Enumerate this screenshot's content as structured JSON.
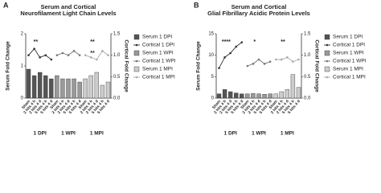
{
  "chart_data": [
    {
      "type": "bar-line",
      "panel": "A",
      "title": [
        "Serum and Cortical",
        "Neurofilament Light Chain Levels"
      ],
      "ylabel": "Serum Fold Change",
      "y2label": "Cortical Fold Change",
      "groups": [
        "1 DPI",
        "1 WPI",
        "1 MPI"
      ],
      "categories": [
        "Sham",
        "2 hits 4 h",
        "2 hits 4 d",
        "5 hits 4 h",
        "5 hits 4 d"
      ],
      "ylim": [
        0,
        2
      ],
      "yticks": [
        0,
        1,
        2
      ],
      "y2lim": [
        0,
        1.5
      ],
      "y2ticks": [
        {
          "value": 0,
          "label": "0.0"
        },
        {
          "value": 0.5,
          "label": "0.5"
        },
        {
          "value": 1,
          "label": "1.0"
        },
        {
          "value": 1.5,
          "label": "1.5"
        }
      ],
      "series": [
        {
          "name": "Serum 1 DPI",
          "color": "#555555",
          "values": [
            0.9,
            0.7,
            0.8,
            0.7,
            0.6
          ]
        },
        {
          "name": "Cortical 1 DPI",
          "color": "#333333",
          "axis": "y2",
          "values": [
            1.0,
            1.15,
            0.95,
            1.0,
            0.9
          ]
        },
        {
          "name": "Serum 1 WPI",
          "color": "#999999",
          "values": [
            0.7,
            0.6,
            0.6,
            0.6,
            0.5
          ]
        },
        {
          "name": "Cortical 1 WPI",
          "color": "#777777",
          "axis": "y2",
          "values": [
            1.0,
            1.05,
            1.0,
            1.1,
            1.0
          ]
        },
        {
          "name": "Serum 1 MPI",
          "color": "#cccccc",
          "values": [
            0.6,
            0.7,
            0.8,
            0.4,
            0.5
          ]
        },
        {
          "name": "Cortical 1 MPI",
          "color": "#aaaaaa",
          "axis": "y2",
          "values": [
            1.0,
            0.95,
            0.9,
            1.1,
            1.0
          ]
        }
      ],
      "annotations": [
        {
          "text": "**",
          "group": 0
        },
        {
          "text": "**",
          "group": 2
        },
        {
          "text": "**",
          "group": 2
        }
      ]
    },
    {
      "type": "bar-line",
      "panel": "B",
      "title": [
        "Serum and Cortical",
        "Glial Fibrillary Acidic Protein Levels"
      ],
      "ylabel": "Serum Fold Change",
      "y2label": "Cortical Fold Change",
      "groups": [
        "1 DPI",
        "1 WPI",
        "1 MPI"
      ],
      "categories": [
        "Sham",
        "2 hits 4 h",
        "2 hits 4 d",
        "5 hits 4 h",
        "5 hits 4 d"
      ],
      "ylim": [
        0,
        15
      ],
      "yticks": [
        0,
        5,
        10,
        15
      ],
      "y2lim": [
        0,
        1.5
      ],
      "y2ticks": [
        {
          "value": 0,
          "label": "0.0"
        },
        {
          "value": 0.5,
          "label": "0.5"
        },
        {
          "value": 1,
          "label": "1.0"
        },
        {
          "value": 1.5,
          "label": "1.5"
        }
      ],
      "series": [
        {
          "name": "Serum 1 DPI",
          "color": "#555555",
          "values": [
            1.0,
            2.0,
            1.5,
            1.2,
            1.0
          ]
        },
        {
          "name": "Cortical 1 DPI",
          "color": "#333333",
          "axis": "y2",
          "values": [
            0.7,
            0.95,
            1.05,
            1.2,
            1.3
          ]
        },
        {
          "name": "Serum 1 WPI",
          "color": "#999999",
          "values": [
            1.0,
            1.1,
            1.0,
            0.9,
            1.0
          ]
        },
        {
          "name": "Cortical 1 WPI",
          "color": "#777777",
          "axis": "y2",
          "values": [
            0.75,
            0.8,
            0.9,
            0.8,
            0.85
          ]
        },
        {
          "name": "Serum 1 MPI",
          "color": "#cccccc",
          "values": [
            1.0,
            1.5,
            2.0,
            5.5,
            2.5
          ]
        },
        {
          "name": "Cortical 1 MPI",
          "color": "#aaaaaa",
          "axis": "y2",
          "values": [
            0.9,
            0.9,
            0.95,
            0.85,
            0.9
          ]
        }
      ],
      "annotations": [
        {
          "text": "****",
          "group": 0
        },
        {
          "text": "*",
          "group": 1
        },
        {
          "text": "**",
          "group": 2
        }
      ]
    }
  ]
}
